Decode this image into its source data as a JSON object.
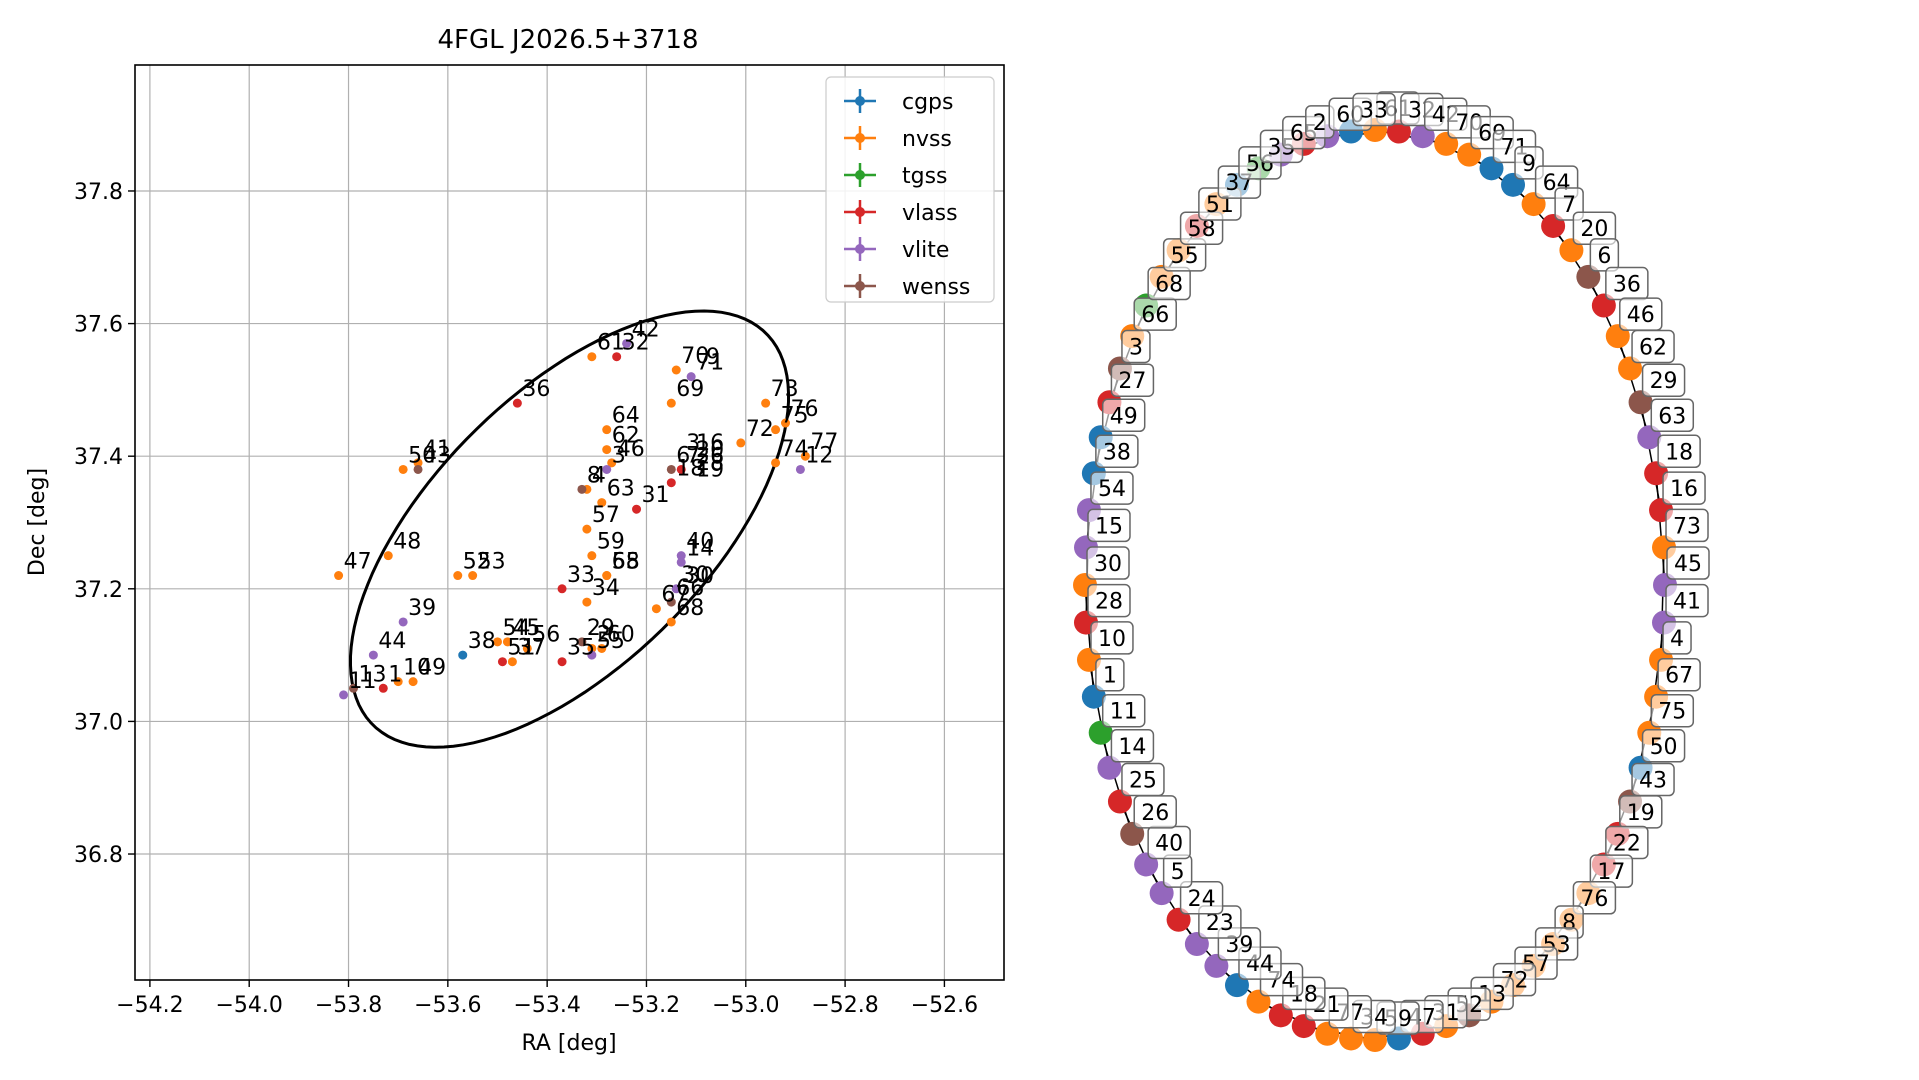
{
  "chart_data": [
    {
      "type": "scatter",
      "title": "4FGL J2026.5+3718",
      "xlabel": "RA [deg]",
      "ylabel": "Dec [deg]",
      "xlim": [
        -54.23,
        -52.48
      ],
      "ylim": [
        36.61,
        37.99
      ],
      "xticks": [
        -54.2,
        -54.0,
        -53.8,
        -53.6,
        -53.4,
        -53.2,
        -53.0,
        -52.8,
        -52.6
      ],
      "xtick_labels": [
        "−54.2",
        "−54.0",
        "−53.8",
        "−53.6",
        "−53.4",
        "−53.2",
        "−53.0",
        "−52.8",
        "−52.6"
      ],
      "yticks": [
        36.8,
        37.0,
        37.2,
        37.4,
        37.6,
        37.8
      ],
      "ytick_labels": [
        "36.8",
        "37.0",
        "37.2",
        "37.4",
        "37.6",
        "37.8"
      ],
      "grid": true,
      "legend_position": "top-right",
      "ellipse": {
        "center": [
          -53.355,
          37.29
        ],
        "semi_major": 0.5,
        "semi_minor": 0.23,
        "angle_deg": 32
      },
      "series": [
        {
          "name": "cgps",
          "color": "#1f77b4",
          "points": [
            {
              "label": "38",
              "x": -53.57,
              "y": 37.1
            }
          ]
        },
        {
          "name": "nvss",
          "color": "#ff7f0e",
          "points": [
            {
              "label": "47",
              "x": -53.82,
              "y": 37.22
            },
            {
              "label": "48",
              "x": -53.72,
              "y": 37.25
            },
            {
              "label": "52",
              "x": -53.58,
              "y": 37.22
            },
            {
              "label": "53",
              "x": -53.55,
              "y": 37.22
            },
            {
              "label": "54",
              "x": -53.5,
              "y": 37.12
            },
            {
              "label": "45",
              "x": -53.48,
              "y": 37.12
            },
            {
              "label": "37",
              "x": -53.47,
              "y": 37.09
            },
            {
              "label": "56",
              "x": -53.44,
              "y": 37.11
            },
            {
              "label": "10",
              "x": -53.7,
              "y": 37.06
            },
            {
              "label": "49",
              "x": -53.67,
              "y": 37.06
            },
            {
              "label": "50",
              "x": -53.69,
              "y": 37.38
            },
            {
              "label": "41",
              "x": -53.66,
              "y": 37.39
            },
            {
              "label": "61",
              "x": -53.31,
              "y": 37.55
            },
            {
              "label": "64",
              "x": -53.28,
              "y": 37.44
            },
            {
              "label": "62",
              "x": -53.28,
              "y": 37.41
            },
            {
              "label": "46",
              "x": -53.27,
              "y": 37.39
            },
            {
              "label": "4",
              "x": -53.32,
              "y": 37.35
            },
            {
              "label": "63",
              "x": -53.29,
              "y": 37.33
            },
            {
              "label": "57",
              "x": -53.32,
              "y": 37.29
            },
            {
              "label": "59",
              "x": -53.31,
              "y": 37.25
            },
            {
              "label": "65",
              "x": -53.28,
              "y": 37.22
            },
            {
              "label": "34",
              "x": -53.32,
              "y": 37.18
            },
            {
              "label": "58",
              "x": -53.28,
              "y": 37.22
            },
            {
              "label": "2",
              "x": -53.31,
              "y": 37.11
            },
            {
              "label": "60",
              "x": -53.29,
              "y": 37.11
            },
            {
              "label": "70",
              "x": -53.14,
              "y": 37.53
            },
            {
              "label": "69",
              "x": -53.15,
              "y": 37.48
            },
            {
              "label": "73",
              "x": -52.96,
              "y": 37.48
            },
            {
              "label": "75",
              "x": -52.94,
              "y": 37.44
            },
            {
              "label": "76",
              "x": -52.92,
              "y": 37.45
            },
            {
              "label": "72",
              "x": -53.01,
              "y": 37.42
            },
            {
              "label": "74",
              "x": -52.94,
              "y": 37.39
            },
            {
              "label": "77",
              "x": -52.88,
              "y": 37.4
            },
            {
              "label": "68",
              "x": -53.15,
              "y": 37.15
            },
            {
              "label": "67",
              "x": -53.18,
              "y": 37.17
            }
          ]
        },
        {
          "name": "tgss",
          "color": "#2ca02c",
          "points": []
        },
        {
          "name": "vlass",
          "color": "#d62728",
          "points": [
            {
              "label": "36",
              "x": -53.46,
              "y": 37.48
            },
            {
              "label": "32",
              "x": -53.26,
              "y": 37.55
            },
            {
              "label": "31",
              "x": -53.22,
              "y": 37.32
            },
            {
              "label": "1",
              "x": -53.73,
              "y": 37.05
            },
            {
              "label": "51",
              "x": -53.49,
              "y": 37.09
            },
            {
              "label": "35",
              "x": -53.37,
              "y": 37.09
            },
            {
              "label": "33",
              "x": -53.37,
              "y": 37.2
            },
            {
              "label": "7",
              "x": -53.13,
              "y": 37.38
            },
            {
              "label": "18",
              "x": -53.15,
              "y": 37.36
            }
          ]
        },
        {
          "name": "vlite",
          "color": "#9467bd",
          "points": [
            {
              "label": "39",
              "x": -53.69,
              "y": 37.15
            },
            {
              "label": "44",
              "x": -53.75,
              "y": 37.1
            },
            {
              "label": "11",
              "x": -53.81,
              "y": 37.04
            },
            {
              "label": "42",
              "x": -53.24,
              "y": 37.57
            },
            {
              "label": "71",
              "x": -53.11,
              "y": 37.52
            },
            {
              "label": "12",
              "x": -52.89,
              "y": 37.38
            },
            {
              "label": "40",
              "x": -53.13,
              "y": 37.25
            },
            {
              "label": "14",
              "x": -53.13,
              "y": 37.24
            },
            {
              "label": "30",
              "x": -53.14,
              "y": 37.2
            },
            {
              "label": "55",
              "x": -53.31,
              "y": 37.1
            },
            {
              "label": "3",
              "x": -53.28,
              "y": 37.38
            }
          ]
        },
        {
          "name": "wenss",
          "color": "#8c564b",
          "points": [
            {
              "label": "43",
              "x": -53.66,
              "y": 37.38
            },
            {
              "label": "6",
              "x": -53.15,
              "y": 37.38
            },
            {
              "label": "66",
              "x": -53.15,
              "y": 37.18
            },
            {
              "label": "29",
              "x": -53.33,
              "y": 37.12
            },
            {
              "label": "13",
              "x": -53.79,
              "y": 37.05
            },
            {
              "label": "8",
              "x": -53.33,
              "y": 37.35
            }
          ]
        }
      ],
      "extra_labels": [
        {
          "text": "3",
          "x": -53.12,
          "y": 37.4
        },
        {
          "text": "16",
          "x": -53.1,
          "y": 37.4
        },
        {
          "text": "20",
          "x": -53.1,
          "y": 37.39
        },
        {
          "text": "26",
          "x": -53.1,
          "y": 37.38
        },
        {
          "text": "28",
          "x": -53.1,
          "y": 37.37
        },
        {
          "text": "19",
          "x": -53.1,
          "y": 37.36
        },
        {
          "text": "9",
          "x": -53.08,
          "y": 37.53
        },
        {
          "text": "30",
          "x": -53.12,
          "y": 37.2
        }
      ]
    },
    {
      "type": "network",
      "nodes": [
        {
          "label": "61",
          "color": "#ff7f0e"
        },
        {
          "label": "32",
          "color": "#d62728"
        },
        {
          "label": "42",
          "color": "#9467bd"
        },
        {
          "label": "70",
          "color": "#ff7f0e"
        },
        {
          "label": "69",
          "color": "#ff7f0e"
        },
        {
          "label": "71",
          "color": "#1f77b4"
        },
        {
          "label": "9",
          "color": "#1f77b4"
        },
        {
          "label": "64",
          "color": "#ff7f0e"
        },
        {
          "label": "7",
          "color": "#d62728"
        },
        {
          "label": "20",
          "color": "#ff7f0e"
        },
        {
          "label": "6",
          "color": "#8c564b"
        },
        {
          "label": "36",
          "color": "#d62728"
        },
        {
          "label": "46",
          "color": "#ff7f0e"
        },
        {
          "label": "62",
          "color": "#ff7f0e"
        },
        {
          "label": "29",
          "color": "#8c564b"
        },
        {
          "label": "63",
          "color": "#9467bd"
        },
        {
          "label": "18",
          "color": "#d62728"
        },
        {
          "label": "16",
          "color": "#d62728"
        },
        {
          "label": "73",
          "color": "#ff7f0e"
        },
        {
          "label": "45",
          "color": "#9467bd"
        },
        {
          "label": "41",
          "color": "#9467bd"
        },
        {
          "label": "4",
          "color": "#ff7f0e"
        },
        {
          "label": "67",
          "color": "#ff7f0e"
        },
        {
          "label": "75",
          "color": "#ff7f0e"
        },
        {
          "label": "50",
          "color": "#1f77b4"
        },
        {
          "label": "43",
          "color": "#8c564b"
        },
        {
          "label": "19",
          "color": "#d62728"
        },
        {
          "label": "22",
          "color": "#d62728"
        },
        {
          "label": "17",
          "color": "#ff7f0e"
        },
        {
          "label": "76",
          "color": "#ff7f0e"
        },
        {
          "label": "8",
          "color": "#ff7f0e"
        },
        {
          "label": "53",
          "color": "#ff7f0e"
        },
        {
          "label": "57",
          "color": "#ff7f0e"
        },
        {
          "label": "72",
          "color": "#ff7f0e"
        },
        {
          "label": "13",
          "color": "#8c564b"
        },
        {
          "label": "52",
          "color": "#ff7f0e"
        },
        {
          "label": "31",
          "color": "#d62728"
        },
        {
          "label": "47",
          "color": "#1f77b4"
        },
        {
          "label": "59",
          "color": "#ff7f0e"
        },
        {
          "label": "34",
          "color": "#ff7f0e"
        },
        {
          "label": "77",
          "color": "#ff7f0e"
        },
        {
          "label": "21",
          "color": "#d62728"
        },
        {
          "label": "18",
          "color": "#d62728"
        },
        {
          "label": "74",
          "color": "#ff7f0e"
        },
        {
          "label": "44",
          "color": "#1f77b4"
        },
        {
          "label": "39",
          "color": "#9467bd"
        },
        {
          "label": "23",
          "color": "#9467bd"
        },
        {
          "label": "24",
          "color": "#d62728"
        },
        {
          "label": "5",
          "color": "#9467bd"
        },
        {
          "label": "40",
          "color": "#9467bd"
        },
        {
          "label": "26",
          "color": "#8c564b"
        },
        {
          "label": "25",
          "color": "#d62728"
        },
        {
          "label": "14",
          "color": "#9467bd"
        },
        {
          "label": "11",
          "color": "#2ca02c"
        },
        {
          "label": "1",
          "color": "#1f77b4"
        },
        {
          "label": "10",
          "color": "#ff7f0e"
        },
        {
          "label": "28",
          "color": "#d62728"
        },
        {
          "label": "30",
          "color": "#ff7f0e"
        },
        {
          "label": "15",
          "color": "#9467bd"
        },
        {
          "label": "54",
          "color": "#9467bd"
        },
        {
          "label": "38",
          "color": "#1f77b4"
        },
        {
          "label": "49",
          "color": "#1f77b4"
        },
        {
          "label": "27",
          "color": "#d62728"
        },
        {
          "label": "3",
          "color": "#8c564b"
        },
        {
          "label": "66",
          "color": "#ff7f0e"
        },
        {
          "label": "68",
          "color": "#2ca02c"
        },
        {
          "label": "55",
          "color": "#ff7f0e"
        },
        {
          "label": "58",
          "color": "#ff7f0e"
        },
        {
          "label": "51",
          "color": "#d62728"
        },
        {
          "label": "37",
          "color": "#ff7f0e"
        },
        {
          "label": "56",
          "color": "#1f77b4"
        },
        {
          "label": "35",
          "color": "#2ca02c"
        },
        {
          "label": "65",
          "color": "#9467bd"
        },
        {
          "label": "2",
          "color": "#d62728"
        },
        {
          "label": "60",
          "color": "#9467bd"
        },
        {
          "label": "33",
          "color": "#1f77b4"
        }
      ]
    }
  ]
}
